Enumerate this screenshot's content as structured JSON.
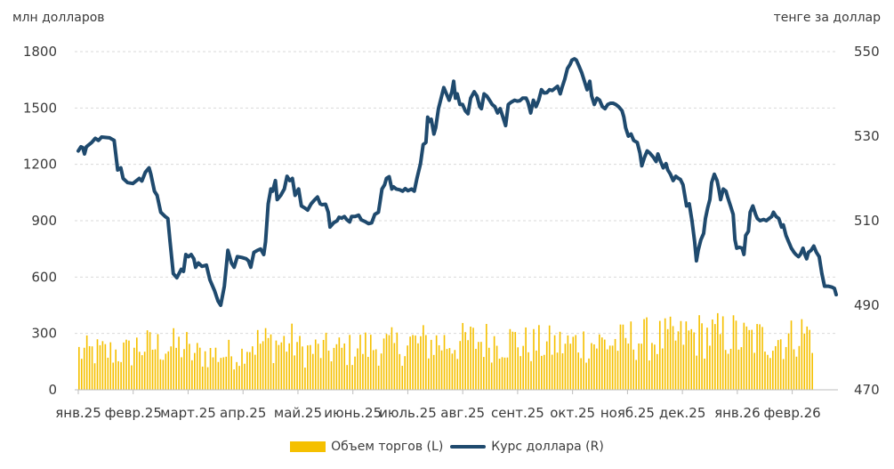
{
  "chart_data": {
    "type": "bar+line",
    "title": "",
    "left_axis_title": "млн долларов",
    "right_axis_title": "тенге за доллар",
    "left_ylim": [
      0,
      1800
    ],
    "left_ticks": [
      "0",
      "300",
      "600",
      "900",
      "1200",
      "1500",
      "1800"
    ],
    "right_ylim": [
      470,
      550
    ],
    "right_ticks": [
      "470",
      "490",
      "510",
      "530",
      "550"
    ],
    "x_labels": [
      "янв.25",
      "февр.25",
      "март.25",
      "апр.25",
      "май.25",
      "июнь.25",
      "июль.25",
      "авг.25",
      "сент.25",
      "окт.25",
      "нояб.25",
      "дек.25",
      "янв.26",
      "февр.26"
    ],
    "series": [
      {
        "name": "Объем торгов (L)",
        "axis": "left",
        "kind": "bar",
        "color": "#F5C000",
        "monthly_levels": [
          200,
          230,
          190,
          250,
          210,
          230,
          250,
          260,
          240,
          250,
          270,
          290,
          270,
          300
        ],
        "trading_days": 280
      },
      {
        "name": "Курс доллара (R)",
        "axis": "right",
        "kind": "line",
        "color": "#1F4A6E",
        "points": [
          [
            0.0,
            526.5
          ],
          [
            0.06,
            527.5
          ],
          [
            0.1,
            527.3
          ],
          [
            0.14,
            525.8
          ],
          [
            0.18,
            527.5
          ],
          [
            0.3,
            528.5
          ],
          [
            0.38,
            529.5
          ],
          [
            0.45,
            529.0
          ],
          [
            0.52,
            529.8
          ],
          [
            0.7,
            529.6
          ],
          [
            0.8,
            529.0
          ],
          [
            0.88,
            522.0
          ],
          [
            0.95,
            522.5
          ],
          [
            1.0,
            520.0
          ],
          [
            1.1,
            519.0
          ],
          [
            1.22,
            518.8
          ],
          [
            1.3,
            519.5
          ],
          [
            1.36,
            520.0
          ],
          [
            1.42,
            519.4
          ],
          [
            1.5,
            521.5
          ],
          [
            1.58,
            522.5
          ],
          [
            1.62,
            521.0
          ],
          [
            1.7,
            517.0
          ],
          [
            1.76,
            516.0
          ],
          [
            1.84,
            512.0
          ],
          [
            1.94,
            511.0
          ],
          [
            2.0,
            510.5
          ],
          [
            2.05,
            505.0
          ],
          [
            2.12,
            497.5
          ],
          [
            2.2,
            496.5
          ],
          [
            2.3,
            498.5
          ],
          [
            2.35,
            498.0
          ],
          [
            2.4,
            502.0
          ],
          [
            2.46,
            501.5
          ],
          [
            2.52,
            502.0
          ],
          [
            2.58,
            501.0
          ],
          [
            2.62,
            499.0
          ],
          [
            2.68,
            500.0
          ],
          [
            2.76,
            499.2
          ],
          [
            2.86,
            499.5
          ],
          [
            2.94,
            496.0
          ],
          [
            3.04,
            493.5
          ],
          [
            3.12,
            491.0
          ],
          [
            3.18,
            490.0
          ],
          [
            3.26,
            494.5
          ],
          [
            3.34,
            503.0
          ],
          [
            3.42,
            500.0
          ],
          [
            3.48,
            499.0
          ],
          [
            3.55,
            501.5
          ],
          [
            3.65,
            501.3
          ],
          [
            3.75,
            501.0
          ],
          [
            3.8,
            500.5
          ],
          [
            3.85,
            499.0
          ],
          [
            3.92,
            502.5
          ],
          [
            4.0,
            503.0
          ],
          [
            4.07,
            503.3
          ],
          [
            4.14,
            502.0
          ],
          [
            4.18,
            505.0
          ],
          [
            4.24,
            514.0
          ],
          [
            4.3,
            517.5
          ],
          [
            4.34,
            517.0
          ],
          [
            4.4,
            519.5
          ],
          [
            4.44,
            515.0
          ],
          [
            4.52,
            516.0
          ],
          [
            4.6,
            517.5
          ],
          [
            4.66,
            520.5
          ],
          [
            4.72,
            519.5
          ],
          [
            4.78,
            520.0
          ],
          [
            4.84,
            516.0
          ],
          [
            4.92,
            517.5
          ],
          [
            4.98,
            513.5
          ],
          [
            5.06,
            513.0
          ],
          [
            5.12,
            512.5
          ],
          [
            5.2,
            514.0
          ],
          [
            5.28,
            515.0
          ],
          [
            5.34,
            515.6
          ],
          [
            5.4,
            514.0
          ],
          [
            5.44,
            513.8
          ],
          [
            5.52,
            513.9
          ],
          [
            5.58,
            512.0
          ],
          [
            5.62,
            508.5
          ],
          [
            5.7,
            509.5
          ],
          [
            5.78,
            510.0
          ],
          [
            5.82,
            510.8
          ],
          [
            5.88,
            510.6
          ],
          [
            5.94,
            511.0
          ],
          [
            6.0,
            510.2
          ],
          [
            6.06,
            509.7
          ],
          [
            6.1,
            511.0
          ],
          [
            6.18,
            511.0
          ],
          [
            6.26,
            511.3
          ],
          [
            6.32,
            510.2
          ],
          [
            6.4,
            509.8
          ],
          [
            6.48,
            509.3
          ],
          [
            6.55,
            509.5
          ],
          [
            6.62,
            511.5
          ],
          [
            6.7,
            512.0
          ],
          [
            6.74,
            514.7
          ],
          [
            6.78,
            517.5
          ],
          [
            6.84,
            518.5
          ],
          [
            6.88,
            520.0
          ],
          [
            6.94,
            520.4
          ],
          [
            7.0,
            517.5
          ],
          [
            7.04,
            518.0
          ],
          [
            7.1,
            517.5
          ],
          [
            7.18,
            517.3
          ],
          [
            7.24,
            517.0
          ],
          [
            7.3,
            517.6
          ],
          [
            7.36,
            517.1
          ],
          [
            7.44,
            517.5
          ],
          [
            7.5,
            517.0
          ],
          [
            7.56,
            520.0
          ],
          [
            7.64,
            523.5
          ],
          [
            7.7,
            528.0
          ],
          [
            7.76,
            528.5
          ],
          [
            7.8,
            534.5
          ],
          [
            7.84,
            533.5
          ],
          [
            7.88,
            534.0
          ],
          [
            7.94,
            530.5
          ],
          [
            7.98,
            532.0
          ],
          [
            8.04,
            536.5
          ],
          [
            8.1,
            539.0
          ],
          [
            8.16,
            541.5
          ],
          [
            8.22,
            540.0
          ],
          [
            8.28,
            538.5
          ],
          [
            8.34,
            540.5
          ],
          [
            8.38,
            543.0
          ],
          [
            8.42,
            539.0
          ],
          [
            8.46,
            540.0
          ],
          [
            8.52,
            537.5
          ],
          [
            8.58,
            537.5
          ],
          [
            8.64,
            536.0
          ],
          [
            8.7,
            535.3
          ],
          [
            8.76,
            539.0
          ],
          [
            8.84,
            540.5
          ],
          [
            8.9,
            539.5
          ],
          [
            8.96,
            537.0
          ],
          [
            9.0,
            536.5
          ],
          [
            9.06,
            540.0
          ],
          [
            9.12,
            539.5
          ],
          [
            9.18,
            538.5
          ],
          [
            9.24,
            537.5
          ],
          [
            9.3,
            537.0
          ],
          [
            9.36,
            535.5
          ],
          [
            9.42,
            536.5
          ],
          [
            9.48,
            534.5
          ],
          [
            9.54,
            532.5
          ],
          [
            9.6,
            537.5
          ],
          [
            9.66,
            538.0
          ],
          [
            9.74,
            538.5
          ],
          [
            9.8,
            538.3
          ],
          [
            9.86,
            538.4
          ],
          [
            9.92,
            539.0
          ],
          [
            10.0,
            539.0
          ],
          [
            10.04,
            538.0
          ],
          [
            10.1,
            535.5
          ],
          [
            10.16,
            538.5
          ],
          [
            10.22,
            537.0
          ],
          [
            10.28,
            538.5
          ],
          [
            10.34,
            541.0
          ],
          [
            10.4,
            540.2
          ],
          [
            10.46,
            540.3
          ],
          [
            10.52,
            541.0
          ],
          [
            10.58,
            540.8
          ],
          [
            10.64,
            541.3
          ],
          [
            10.7,
            541.8
          ],
          [
            10.76,
            540.0
          ],
          [
            10.8,
            541.5
          ],
          [
            10.86,
            543.5
          ],
          [
            10.92,
            546.0
          ],
          [
            10.98,
            547.0
          ],
          [
            11.02,
            548.0
          ],
          [
            11.08,
            548.3
          ],
          [
            11.12,
            548.0
          ],
          [
            11.18,
            546.5
          ],
          [
            11.24,
            545.0
          ],
          [
            11.3,
            543.0
          ],
          [
            11.36,
            541.0
          ],
          [
            11.42,
            543.0
          ],
          [
            11.46,
            539.5
          ],
          [
            11.52,
            537.5
          ],
          [
            11.58,
            539.0
          ],
          [
            11.64,
            538.5
          ],
          [
            11.7,
            537.0
          ],
          [
            11.76,
            536.5
          ],
          [
            11.82,
            537.5
          ],
          [
            11.88,
            537.8
          ],
          [
            11.94,
            537.8
          ],
          [
            12.0,
            537.5
          ],
          [
            12.06,
            537.0
          ],
          [
            12.1,
            536.5
          ],
          [
            12.14,
            536.0
          ],
          [
            12.18,
            534.5
          ],
          [
            12.22,
            532.0
          ],
          [
            12.28,
            530.0
          ],
          [
            12.34,
            530.5
          ],
          [
            12.4,
            529.0
          ],
          [
            12.48,
            528.5
          ],
          [
            12.54,
            526.0
          ],
          [
            12.58,
            523.0
          ],
          [
            12.64,
            525.0
          ],
          [
            12.7,
            526.5
          ],
          [
            12.76,
            526.0
          ],
          [
            12.84,
            525.0
          ],
          [
            12.9,
            524.0
          ],
          [
            12.94,
            525.8
          ],
          [
            13.0,
            524.0
          ],
          [
            13.06,
            522.5
          ],
          [
            13.12,
            523.5
          ],
          [
            13.16,
            522.0
          ],
          [
            13.22,
            521.0
          ],
          [
            13.28,
            519.5
          ],
          [
            13.34,
            520.5
          ],
          [
            13.4,
            520.0
          ],
          [
            13.44,
            519.8
          ],
          [
            13.5,
            518.5
          ],
          [
            13.54,
            516.0
          ],
          [
            13.58,
            513.5
          ],
          [
            13.64,
            514.0
          ],
          [
            13.7,
            510.0
          ],
          [
            13.76,
            505.0
          ],
          [
            13.8,
            500.5
          ],
          [
            13.84,
            503.0
          ],
          [
            13.9,
            505.5
          ],
          [
            13.96,
            507.0
          ],
          [
            14.0,
            510.5
          ],
          [
            14.05,
            513.0
          ],
          [
            14.1,
            515.0
          ],
          [
            14.14,
            519.0
          ],
          [
            14.2,
            521.0
          ],
          [
            14.26,
            519.5
          ],
          [
            14.3,
            517.5
          ],
          [
            14.34,
            515.0
          ],
          [
            14.4,
            517.5
          ],
          [
            14.46,
            517.0
          ],
          [
            14.5,
            515.5
          ],
          [
            14.56,
            513.5
          ],
          [
            14.62,
            511.5
          ],
          [
            14.66,
            505.5
          ],
          [
            14.7,
            503.5
          ],
          [
            14.76,
            503.7
          ],
          [
            14.82,
            503.5
          ],
          [
            14.86,
            502.0
          ],
          [
            14.9,
            506.5
          ],
          [
            14.96,
            507.5
          ],
          [
            15.0,
            512.0
          ],
          [
            15.06,
            513.5
          ],
          [
            15.12,
            511.5
          ],
          [
            15.16,
            510.5
          ],
          [
            15.22,
            510.0
          ],
          [
            15.3,
            510.3
          ],
          [
            15.36,
            510.0
          ],
          [
            15.42,
            510.5
          ],
          [
            15.48,
            511.0
          ],
          [
            15.52,
            512.0
          ],
          [
            15.58,
            511.0
          ],
          [
            15.64,
            510.5
          ],
          [
            15.7,
            508.5
          ],
          [
            15.74,
            509.0
          ],
          [
            15.8,
            506.5
          ],
          [
            15.86,
            505.0
          ],
          [
            15.92,
            503.5
          ],
          [
            15.98,
            502.5
          ],
          [
            16.02,
            502.0
          ],
          [
            16.08,
            501.5
          ],
          [
            16.12,
            502.0
          ],
          [
            16.18,
            503.5
          ],
          [
            16.22,
            502.0
          ],
          [
            16.26,
            501.0
          ],
          [
            16.3,
            502.5
          ],
          [
            16.36,
            503.0
          ],
          [
            16.42,
            504.0
          ],
          [
            16.48,
            502.5
          ],
          [
            16.54,
            501.5
          ],
          [
            16.6,
            497.5
          ],
          [
            16.66,
            494.5
          ],
          [
            16.74,
            494.5
          ],
          [
            16.82,
            494.3
          ],
          [
            16.88,
            494.0
          ],
          [
            16.92,
            492.5
          ]
        ]
      }
    ]
  }
}
